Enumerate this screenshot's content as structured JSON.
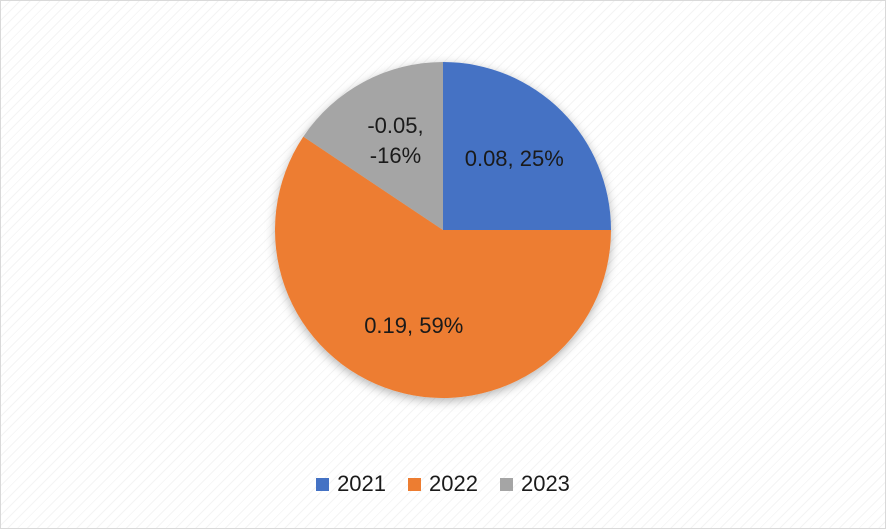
{
  "chart_data": {
    "type": "pie",
    "categories": [
      "2021",
      "2022",
      "2023"
    ],
    "values": [
      0.08,
      0.19,
      -0.05
    ],
    "value_labels": [
      "0.08, 25%",
      "0.19, 59%",
      "-0.05, -16%"
    ],
    "colors": [
      "#4472c4",
      "#ed7d31",
      "#a5a5a5"
    ],
    "legend": "bottom"
  }
}
